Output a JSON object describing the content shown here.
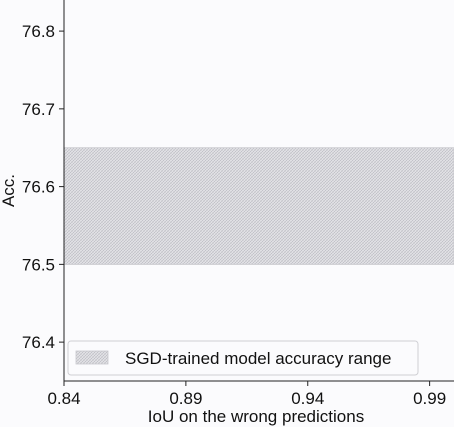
{
  "chart_data": {
    "type": "area",
    "title": "",
    "xlabel": "IoU on the wrong predictions",
    "ylabel": "Acc.",
    "xlim": [
      0.84,
      1.0
    ],
    "ylim": [
      76.35,
      76.84
    ],
    "x_ticks": [
      0.84,
      0.89,
      0.94,
      0.99
    ],
    "x_tick_labels": [
      "0.84",
      "0.89",
      "0.94",
      "0.99"
    ],
    "y_ticks": [
      76.4,
      76.5,
      76.6,
      76.7,
      76.8
    ],
    "y_tick_labels": [
      "76.4",
      "76.5",
      "76.6",
      "76.7",
      "76.8"
    ],
    "bands": [
      {
        "name": "SGD-trained model accuracy range",
        "y_low": 76.5,
        "y_high": 76.65,
        "x_range": [
          0.84,
          1.0
        ],
        "fill": "hatched-gray"
      }
    ],
    "legend": {
      "position": "lower-left",
      "entries": [
        "SGD-trained model accuracy range"
      ]
    },
    "grid": false
  },
  "colors": {
    "band": "#d8d8dc",
    "hatch": "#b4b4ba",
    "axis": "#222222",
    "background": "#fbfbfd"
  }
}
